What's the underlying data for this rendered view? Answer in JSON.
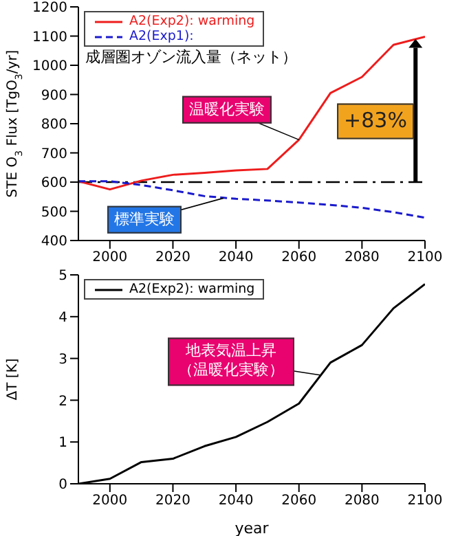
{
  "chart_data": [
    {
      "type": "line",
      "ylabel": "STE O$_{3}$ Flux [TgO$_{3}$/yr]",
      "x": [
        1990,
        2000,
        2010,
        2020,
        2030,
        2040,
        2050,
        2060,
        2070,
        2080,
        2090,
        2100
      ],
      "series": [
        {
          "name": "A2(Exp2): warming",
          "color": "#ee1c1c",
          "line_style": "solid",
          "values": [
            603,
            575,
            605,
            625,
            632,
            640,
            645,
            745,
            905,
            960,
            1070,
            1098
          ]
        },
        {
          "name": "A2(Exp1):",
          "color": "#1a1acc",
          "line_style": "dashed",
          "values": [
            603,
            603,
            590,
            572,
            552,
            543,
            537,
            530,
            522,
            512,
            497,
            478
          ]
        }
      ],
      "xlim": [
        1990,
        2100
      ],
      "xticks": [
        2000,
        2020,
        2040,
        2060,
        2080,
        2100
      ],
      "ylim": [
        400,
        1200
      ],
      "yticks": [
        400,
        500,
        600,
        700,
        800,
        900,
        1000,
        1100,
        1200
      ],
      "grid": false,
      "legend": "top left",
      "marker": "none",
      "ref_lines": [
        {
          "axis": "y",
          "value": 600,
          "color": "#000000",
          "line_style": "dashdot"
        }
      ],
      "annotations": [
        "成層圏オゾン流入量（ネット）",
        {
          "text": "温暖化実験",
          "x": 2060,
          "y": 745
        },
        {
          "text": "標準実験",
          "x": 2036,
          "y": 545
        },
        "+83%"
      ]
    },
    {
      "type": "line",
      "ylabel": "ΔT [K]",
      "xlabel": "year",
      "x": [
        1990,
        2000,
        2010,
        2020,
        2030,
        2040,
        2050,
        2060,
        2070,
        2080,
        2090,
        2100
      ],
      "series": [
        {
          "name": "A2(Exp2): warming",
          "color": "#000000",
          "line_style": "solid",
          "values": [
            0,
            0.12,
            0.52,
            0.6,
            0.9,
            1.12,
            1.48,
            1.92,
            2.9,
            3.32,
            4.2,
            4.78
          ]
        }
      ],
      "xlim": [
        1990,
        2100
      ],
      "xticks": [
        2000,
        2020,
        2040,
        2060,
        2080,
        2100
      ],
      "ylim": [
        0,
        5
      ],
      "yticks": [
        0,
        1,
        2,
        3,
        4,
        5
      ],
      "grid": false,
      "legend": "top left",
      "marker": "none",
      "annotations": [
        {
          "text": "地表気温上昇（温暖化実験）",
          "x": 2067,
          "y": 2.6
        }
      ]
    }
  ]
}
